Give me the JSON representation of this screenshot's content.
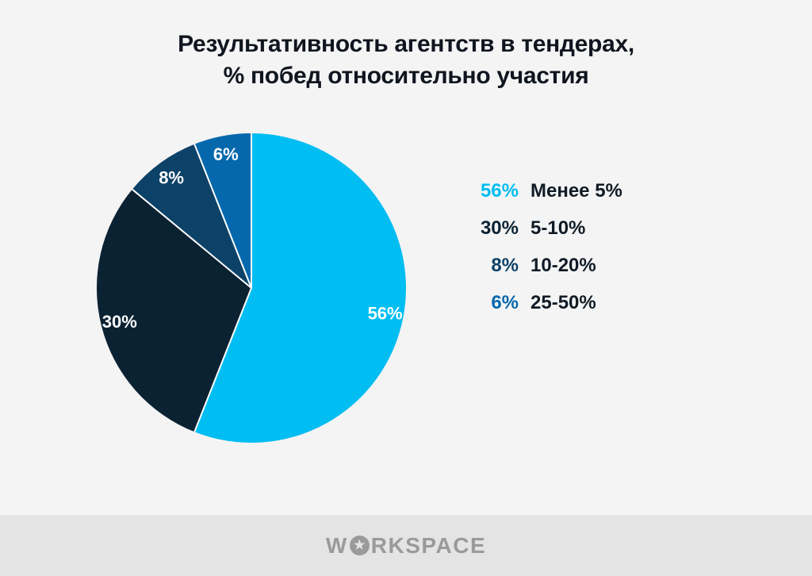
{
  "title": {
    "line1": "Результативность агентств в тендерах,",
    "line2": "% побед относительно участия"
  },
  "chart_data": {
    "type": "pie",
    "title": "Результативность агентств в тендерах, % побед относительно участия",
    "values": [
      56,
      30,
      8,
      6
    ],
    "labels": [
      "Менее 5%",
      "5-10%",
      "10-20%",
      "25-50%"
    ],
    "slice_labels": [
      "56%",
      "30%",
      "8%",
      "6%"
    ],
    "colors": [
      "#00bdf2",
      "#0b2233",
      "#0d4268",
      "#0568ac"
    ],
    "start_angle_deg": 0,
    "direction": "clockwise",
    "divider_color": "#ffffff",
    "slice_label_color": "#ffffff",
    "legend_position": "right"
  },
  "legend": {
    "items": [
      {
        "value": "56%",
        "label": "Менее 5%"
      },
      {
        "value": "30%",
        "label": "5-10%"
      },
      {
        "value": "8%",
        "label": "10-20%"
      },
      {
        "value": "6%",
        "label": "25-50%"
      }
    ]
  },
  "footer": {
    "logo_before": "W",
    "logo_star": "★",
    "logo_after": "RKSPACE"
  },
  "colors": {
    "background": "#f4f4f4",
    "footer_background": "#e4e4e4",
    "title_text": "#10151f",
    "legend_label_text": "#101b26",
    "logo_gray": "#9a9a9a"
  }
}
